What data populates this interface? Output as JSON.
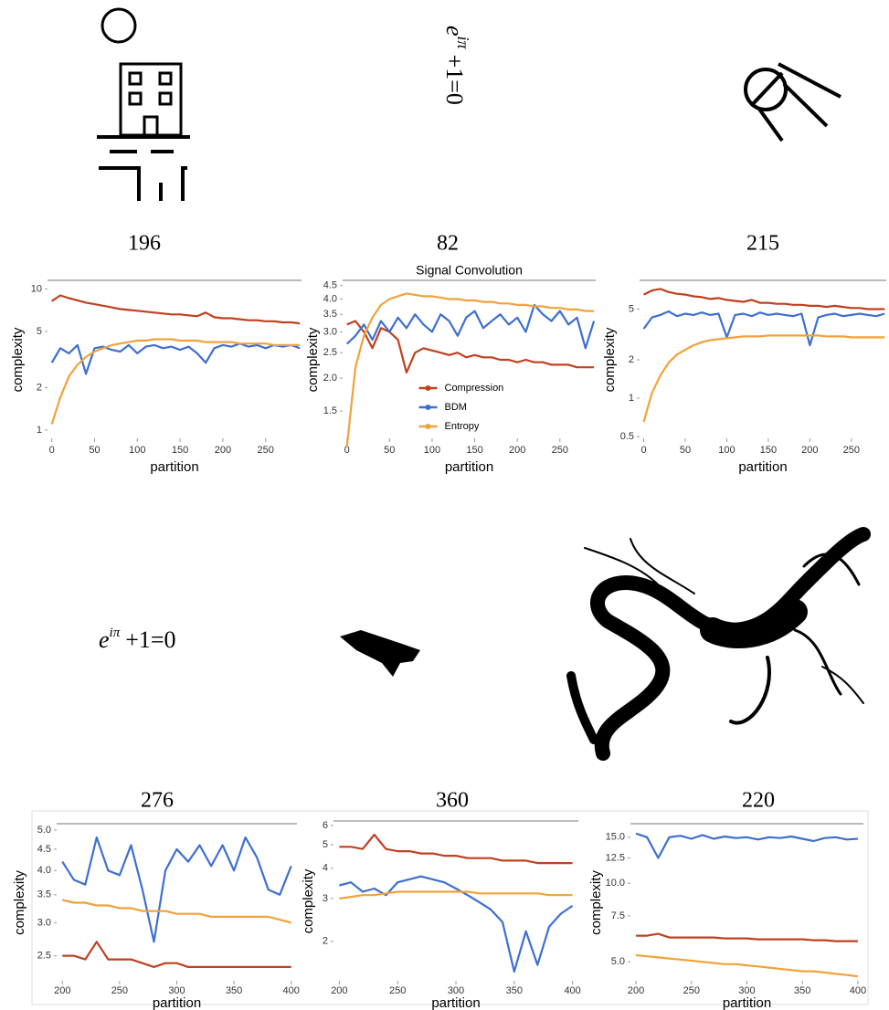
{
  "panel_labels": [
    196,
    82,
    215,
    276,
    360,
    220
  ],
  "equation": {
    "base": "e",
    "exponent": "iπ",
    "rest": "+1=0"
  },
  "chart_data": [
    {
      "type": "line",
      "y_label": "complexity",
      "x_label": "partition",
      "log_y": true,
      "x": [
        0,
        10,
        20,
        30,
        40,
        50,
        60,
        70,
        80,
        90,
        100,
        110,
        120,
        130,
        140,
        150,
        160,
        170,
        180,
        190,
        200,
        210,
        220,
        230,
        240,
        250,
        260,
        270,
        280,
        290
      ],
      "xlim": [
        -5,
        292
      ],
      "xticks": [
        0,
        50,
        100,
        150,
        200,
        250
      ],
      "ylim": [
        0.9,
        11
      ],
      "yticks": [
        1,
        2,
        5,
        10
      ],
      "series": [
        {
          "color": "#c0401f",
          "values": [
            8.2,
            9.0,
            8.6,
            8.3,
            8.0,
            7.8,
            7.6,
            7.4,
            7.2,
            7.1,
            7.0,
            6.9,
            6.8,
            6.7,
            6.6,
            6.6,
            6.5,
            6.4,
            6.8,
            6.3,
            6.2,
            6.2,
            6.1,
            6.0,
            6.0,
            5.9,
            5.9,
            5.8,
            5.8,
            5.7
          ]
        },
        {
          "color": "#3d6fd1",
          "values": [
            3.0,
            3.8,
            3.5,
            4.0,
            2.5,
            3.8,
            3.9,
            3.7,
            3.6,
            4.0,
            3.5,
            3.9,
            4.0,
            3.8,
            3.9,
            3.7,
            3.9,
            3.5,
            3.0,
            3.8,
            4.0,
            3.9,
            4.1,
            3.9,
            4.0,
            3.8,
            4.0,
            3.9,
            4.0,
            3.8
          ]
        },
        {
          "color": "#f2a23a",
          "values": [
            1.1,
            1.7,
            2.4,
            2.9,
            3.3,
            3.6,
            3.8,
            4.0,
            4.1,
            4.2,
            4.3,
            4.3,
            4.4,
            4.4,
            4.4,
            4.3,
            4.3,
            4.3,
            4.2,
            4.2,
            4.2,
            4.2,
            4.1,
            4.1,
            4.1,
            4.1,
            4.0,
            4.0,
            4.0,
            4.0
          ]
        }
      ]
    },
    {
      "type": "line",
      "title": "Signal Convolution",
      "y_label": "complexity",
      "x_label": "partition",
      "log_y": true,
      "legend": "center",
      "x": [
        0,
        10,
        20,
        30,
        40,
        50,
        60,
        70,
        80,
        90,
        100,
        110,
        120,
        130,
        140,
        150,
        160,
        170,
        180,
        190,
        200,
        210,
        220,
        230,
        240,
        250,
        260,
        270,
        280,
        290
      ],
      "xlim": [
        -5,
        292
      ],
      "xticks": [
        0,
        50,
        100,
        150,
        200,
        250
      ],
      "ylim": [
        1.2,
        4.6
      ],
      "yticks": [
        1.5,
        {
          "value": 2,
          "label": "2.0"
        },
        2.5,
        {
          "value": 3,
          "label": "3.0"
        },
        3.5,
        {
          "value": 4,
          "label": "4.0"
        },
        4.5
      ],
      "series": [
        {
          "name": "Compression",
          "color": "#c0401f",
          "values": [
            3.2,
            3.3,
            3.0,
            2.6,
            3.1,
            3.0,
            2.8,
            2.1,
            2.5,
            2.6,
            2.55,
            2.5,
            2.45,
            2.5,
            2.4,
            2.45,
            2.4,
            2.4,
            2.35,
            2.35,
            2.3,
            2.35,
            2.3,
            2.3,
            2.25,
            2.25,
            2.25,
            2.2,
            2.2,
            2.2
          ]
        },
        {
          "name": "BDM",
          "color": "#3d6fd1",
          "values": [
            2.7,
            2.9,
            3.2,
            2.8,
            3.3,
            3.0,
            3.4,
            3.1,
            3.5,
            3.2,
            3.0,
            3.5,
            3.3,
            2.9,
            3.4,
            3.6,
            3.1,
            3.3,
            3.5,
            3.2,
            3.4,
            3.0,
            3.8,
            3.5,
            3.3,
            3.6,
            3.2,
            3.4,
            2.6,
            3.3
          ]
        },
        {
          "name": "Entropy",
          "color": "#f2a23a",
          "values": [
            1.1,
            2.2,
            2.9,
            3.4,
            3.8,
            4.0,
            4.1,
            4.2,
            4.15,
            4.1,
            4.1,
            4.05,
            4.0,
            4.0,
            3.95,
            3.95,
            3.9,
            3.9,
            3.85,
            3.85,
            3.8,
            3.8,
            3.75,
            3.75,
            3.7,
            3.7,
            3.65,
            3.65,
            3.6,
            3.6
          ]
        }
      ]
    },
    {
      "type": "line",
      "y_label": "complexity",
      "x_label": "partition",
      "log_y": true,
      "x": [
        0,
        10,
        20,
        30,
        40,
        50,
        60,
        70,
        80,
        90,
        100,
        110,
        120,
        130,
        140,
        150,
        160,
        170,
        180,
        190,
        200,
        210,
        220,
        230,
        240,
        250,
        260,
        270,
        280,
        290
      ],
      "xlim": [
        -5,
        292
      ],
      "xticks": [
        0,
        50,
        100,
        150,
        200,
        250
      ],
      "ylim": [
        0.5,
        8
      ],
      "yticks": [
        0.5,
        1,
        2,
        5
      ],
      "series": [
        {
          "color": "#c0401f",
          "values": [
            6.5,
            7.0,
            7.2,
            6.8,
            6.6,
            6.5,
            6.3,
            6.2,
            6.0,
            6.1,
            5.9,
            5.8,
            5.7,
            5.9,
            5.6,
            5.6,
            5.5,
            5.5,
            5.4,
            5.4,
            5.3,
            5.3,
            5.2,
            5.3,
            5.2,
            5.1,
            5.1,
            5.0,
            5.0,
            5.0
          ]
        },
        {
          "color": "#3d6fd1",
          "values": [
            3.5,
            4.3,
            4.5,
            4.8,
            4.4,
            4.6,
            4.5,
            4.7,
            4.5,
            4.6,
            3.0,
            4.5,
            4.6,
            4.4,
            4.7,
            4.5,
            4.6,
            4.5,
            4.4,
            4.6,
            2.6,
            4.3,
            4.5,
            4.6,
            4.4,
            4.5,
            4.6,
            4.5,
            4.4,
            4.6
          ]
        },
        {
          "color": "#f2a23a",
          "values": [
            0.65,
            1.1,
            1.5,
            1.9,
            2.2,
            2.4,
            2.6,
            2.75,
            2.85,
            2.9,
            2.95,
            3.0,
            3.05,
            3.05,
            3.05,
            3.1,
            3.1,
            3.1,
            3.1,
            3.1,
            3.1,
            3.1,
            3.05,
            3.05,
            3.05,
            3.0,
            3.0,
            3.0,
            3.0,
            3.0
          ]
        }
      ]
    },
    {
      "type": "line",
      "y_label": "complexity",
      "x_label": "partition",
      "log_y": true,
      "x": [
        200,
        210,
        220,
        230,
        240,
        250,
        260,
        270,
        280,
        290,
        300,
        310,
        320,
        330,
        340,
        350,
        360,
        370,
        380,
        390,
        400
      ],
      "xlim": [
        195,
        405
      ],
      "xticks": [
        200,
        250,
        300,
        350,
        400
      ],
      "ylim": [
        2.2,
        5.1
      ],
      "yticks": [
        2.5,
        {
          "value": 3,
          "label": "3.0"
        },
        3.5,
        {
          "value": 4,
          "label": "4.0"
        },
        4.5,
        {
          "value": 5,
          "label": "5.0"
        }
      ],
      "series": [
        {
          "color": "#3d6fd1",
          "values": [
            4.2,
            3.8,
            3.7,
            4.8,
            4.0,
            3.9,
            4.6,
            3.6,
            2.7,
            4.0,
            4.5,
            4.2,
            4.6,
            4.1,
            4.6,
            4.0,
            4.8,
            4.3,
            3.6,
            3.5,
            4.1
          ]
        },
        {
          "color": "#f2a23a",
          "values": [
            3.4,
            3.35,
            3.35,
            3.3,
            3.3,
            3.25,
            3.25,
            3.2,
            3.2,
            3.2,
            3.15,
            3.15,
            3.15,
            3.1,
            3.1,
            3.1,
            3.1,
            3.1,
            3.1,
            3.05,
            3.0
          ]
        },
        {
          "color": "#c0401f",
          "values": [
            2.5,
            2.5,
            2.45,
            2.7,
            2.45,
            2.45,
            2.45,
            2.4,
            2.35,
            2.4,
            2.4,
            2.35,
            2.35,
            2.35,
            2.35,
            2.35,
            2.35,
            2.35,
            2.35,
            2.35,
            2.35
          ]
        }
      ]
    },
    {
      "type": "line",
      "y_label": "complexity",
      "x_label": "partition",
      "log_y": true,
      "x": [
        200,
        210,
        220,
        230,
        240,
        250,
        260,
        270,
        280,
        290,
        300,
        310,
        320,
        330,
        340,
        350,
        360,
        370,
        380,
        390,
        400
      ],
      "xlim": [
        195,
        405
      ],
      "xticks": [
        200,
        250,
        300,
        350,
        400
      ],
      "ylim": [
        1.4,
        6.1
      ],
      "yticks": [
        2,
        3,
        4,
        5,
        6
      ],
      "series": [
        {
          "color": "#c0401f",
          "values": [
            4.9,
            4.9,
            4.8,
            5.5,
            4.8,
            4.7,
            4.7,
            4.6,
            4.6,
            4.5,
            4.5,
            4.4,
            4.4,
            4.4,
            4.3,
            4.3,
            4.3,
            4.2,
            4.2,
            4.2,
            4.2
          ]
        },
        {
          "color": "#3d6fd1",
          "values": [
            3.4,
            3.5,
            3.2,
            3.3,
            3.1,
            3.5,
            3.6,
            3.7,
            3.6,
            3.5,
            3.3,
            3.1,
            2.9,
            2.7,
            2.4,
            1.5,
            2.2,
            1.6,
            2.3,
            2.6,
            2.8
          ]
        },
        {
          "color": "#f2a23a",
          "values": [
            3.0,
            3.05,
            3.1,
            3.1,
            3.15,
            3.2,
            3.2,
            3.2,
            3.2,
            3.2,
            3.2,
            3.2,
            3.15,
            3.15,
            3.15,
            3.15,
            3.15,
            3.15,
            3.1,
            3.1,
            3.1
          ]
        }
      ]
    },
    {
      "type": "line",
      "y_label": "complexity",
      "x_label": "partition",
      "log_y": true,
      "x": [
        200,
        210,
        220,
        230,
        240,
        250,
        260,
        270,
        280,
        290,
        300,
        310,
        320,
        330,
        340,
        350,
        360,
        370,
        380,
        390,
        400
      ],
      "xlim": [
        195,
        405
      ],
      "xticks": [
        200,
        250,
        300,
        350,
        400
      ],
      "ylim": [
        4.3,
        16.5
      ],
      "yticks": [
        {
          "value": 5,
          "label": "5.0"
        },
        7.5,
        {
          "value": 10,
          "label": "10.0"
        },
        12.5,
        {
          "value": 15,
          "label": "15.0"
        }
      ],
      "series": [
        {
          "color": "#3d6fd1",
          "values": [
            15.5,
            15.0,
            12.5,
            15.0,
            15.2,
            14.8,
            15.3,
            14.8,
            15.1,
            14.9,
            15.0,
            14.7,
            15.0,
            14.9,
            15.1,
            14.8,
            14.5,
            14.9,
            15.0,
            14.7,
            14.8
          ]
        },
        {
          "color": "#c0401f",
          "values": [
            6.3,
            6.3,
            6.4,
            6.2,
            6.2,
            6.2,
            6.2,
            6.2,
            6.15,
            6.15,
            6.15,
            6.1,
            6.1,
            6.1,
            6.1,
            6.1,
            6.05,
            6.05,
            6.0,
            6.0,
            6.0
          ]
        },
        {
          "color": "#f2a23a",
          "values": [
            5.3,
            5.25,
            5.2,
            5.15,
            5.1,
            5.05,
            5.0,
            4.95,
            4.9,
            4.9,
            4.85,
            4.8,
            4.75,
            4.7,
            4.65,
            4.6,
            4.6,
            4.55,
            4.5,
            4.45,
            4.4
          ]
        }
      ]
    }
  ]
}
